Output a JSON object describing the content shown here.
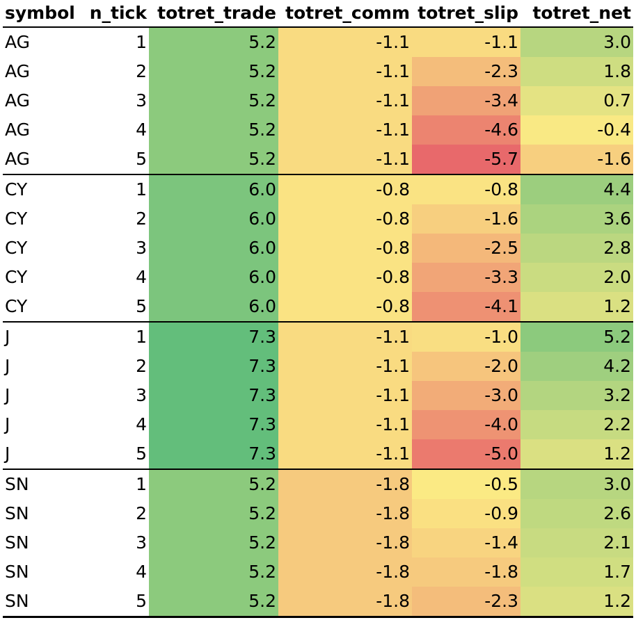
{
  "chart_data": {
    "type": "table",
    "columns": [
      "symbol",
      "n_tick",
      "totret_trade",
      "totret_comm",
      "totret_slip",
      "totret_net"
    ],
    "rows": [
      [
        "AG",
        1,
        "5.2",
        "-1.1",
        "-1.1",
        "3.0"
      ],
      [
        "AG",
        2,
        "5.2",
        "-1.1",
        "-2.3",
        "1.8"
      ],
      [
        "AG",
        3,
        "5.2",
        "-1.1",
        "-3.4",
        "0.7"
      ],
      [
        "AG",
        4,
        "5.2",
        "-1.1",
        "-4.6",
        "-0.4"
      ],
      [
        "AG",
        5,
        "5.2",
        "-1.1",
        "-5.7",
        "-1.6"
      ],
      [
        "CY",
        1,
        "6.0",
        "-0.8",
        "-0.8",
        "4.4"
      ],
      [
        "CY",
        2,
        "6.0",
        "-0.8",
        "-1.6",
        "3.6"
      ],
      [
        "CY",
        3,
        "6.0",
        "-0.8",
        "-2.5",
        "2.8"
      ],
      [
        "CY",
        4,
        "6.0",
        "-0.8",
        "-3.3",
        "2.0"
      ],
      [
        "CY",
        5,
        "6.0",
        "-0.8",
        "-4.1",
        "1.2"
      ],
      [
        "J",
        1,
        "7.3",
        "-1.1",
        "-1.0",
        "5.2"
      ],
      [
        "J",
        2,
        "7.3",
        "-1.1",
        "-2.0",
        "4.2"
      ],
      [
        "J",
        3,
        "7.3",
        "-1.1",
        "-3.0",
        "3.2"
      ],
      [
        "J",
        4,
        "7.3",
        "-1.1",
        "-4.0",
        "2.2"
      ],
      [
        "J",
        5,
        "7.3",
        "-1.1",
        "-5.0",
        "1.2"
      ],
      [
        "SN",
        1,
        "5.2",
        "-1.8",
        "-0.5",
        "3.0"
      ],
      [
        "SN",
        2,
        "5.2",
        "-1.8",
        "-0.9",
        "2.6"
      ],
      [
        "SN",
        3,
        "5.2",
        "-1.8",
        "-1.4",
        "2.1"
      ],
      [
        "SN",
        4,
        "5.2",
        "-1.8",
        "-1.8",
        "1.7"
      ],
      [
        "SN",
        5,
        "5.2",
        "-1.8",
        "-2.3",
        "1.2"
      ]
    ],
    "color_scale": {
      "low": "#e8696b",
      "mid": "#fbea84",
      "high": "#63be7b"
    },
    "grid": false
  }
}
